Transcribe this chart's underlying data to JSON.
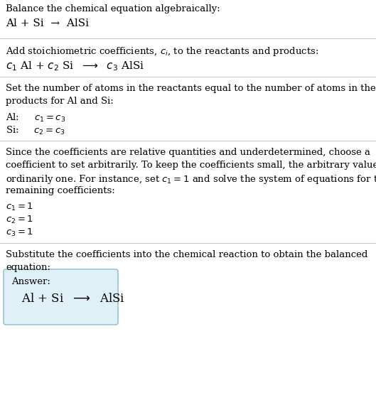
{
  "title_line1": "Balance the chemical equation algebraically:",
  "title_line2": "Al + Si  →  AlSi",
  "section2_intro": "Add stoichiometric coefficients, $c_i$, to the reactants and products:",
  "section2_eq": "$c_1$ Al + $c_2$ Si  $\\longrightarrow$  $c_3$ AlSi",
  "section3_intro1": "Set the number of atoms in the reactants equal to the number of atoms in the",
  "section3_intro2": "products for Al and Si:",
  "section3_al": "Al:   $c_1 = c_3$",
  "section3_si": "Si:   $c_2 = c_3$",
  "section4_intro1": "Since the coefficients are relative quantities and underdetermined, choose a",
  "section4_intro2": "coefficient to set arbitrarily. To keep the coefficients small, the arbitrary value is",
  "section4_intro3": "ordinarily one. For instance, set $c_1 = 1$ and solve the system of equations for the",
  "section4_intro4": "remaining coefficients:",
  "section4_c1": "$c_1 = 1$",
  "section4_c2": "$c_2 = 1$",
  "section4_c3": "$c_3 = 1$",
  "section5_intro1": "Substitute the coefficients into the chemical reaction to obtain the balanced",
  "section5_intro2": "equation:",
  "answer_label": "Answer:",
  "answer_eq": "Al + Si  $\\longrightarrow$  AlSi",
  "bg_color": "#ffffff",
  "text_color": "#000000",
  "line_color": "#c8c8c8",
  "answer_box_facecolor": "#dff0f7",
  "answer_box_edgecolor": "#88bbcc",
  "fs_body": 9.5,
  "fs_eq": 11.0,
  "fs_answer_eq": 12.0
}
